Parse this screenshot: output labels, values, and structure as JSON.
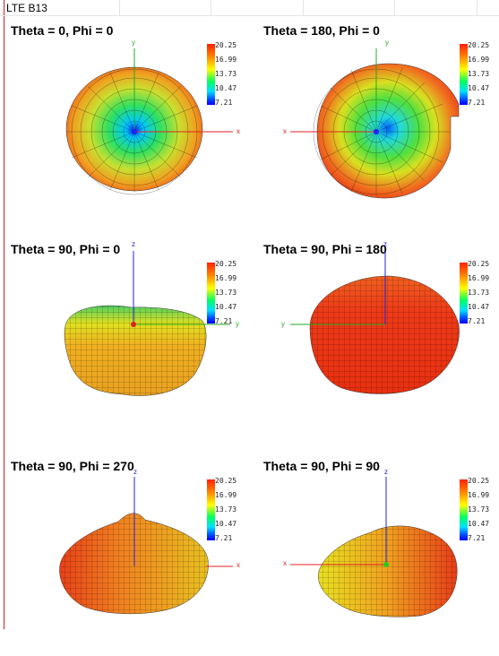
{
  "sheet": {
    "title": "LTE B13"
  },
  "legend_ticks": [
    "20.25",
    "16.99",
    "13.73",
    "10.47",
    "7.21"
  ],
  "panels": [
    {
      "title": "Theta = 0, Phi = 0",
      "axes": {
        "up": "y",
        "right": "x",
        "left": ""
      }
    },
    {
      "title": "Theta = 180, Phi = 0",
      "axes": {
        "up": "y",
        "right": "",
        "left": "x"
      }
    },
    {
      "title": "Theta = 90, Phi = 0",
      "axes": {
        "up": "z",
        "right": "y",
        "left": ""
      }
    },
    {
      "title": "Theta = 90, Phi = 180",
      "axes": {
        "up": "z",
        "right": "",
        "left": "y"
      }
    },
    {
      "title": "Theta = 90, Phi = 270",
      "axes": {
        "up": "z",
        "right": "x",
        "left": ""
      }
    },
    {
      "title": "Theta = 90, Phi = 90",
      "axes": {
        "up": "z",
        "right": "",
        "left": "x"
      }
    }
  ]
}
